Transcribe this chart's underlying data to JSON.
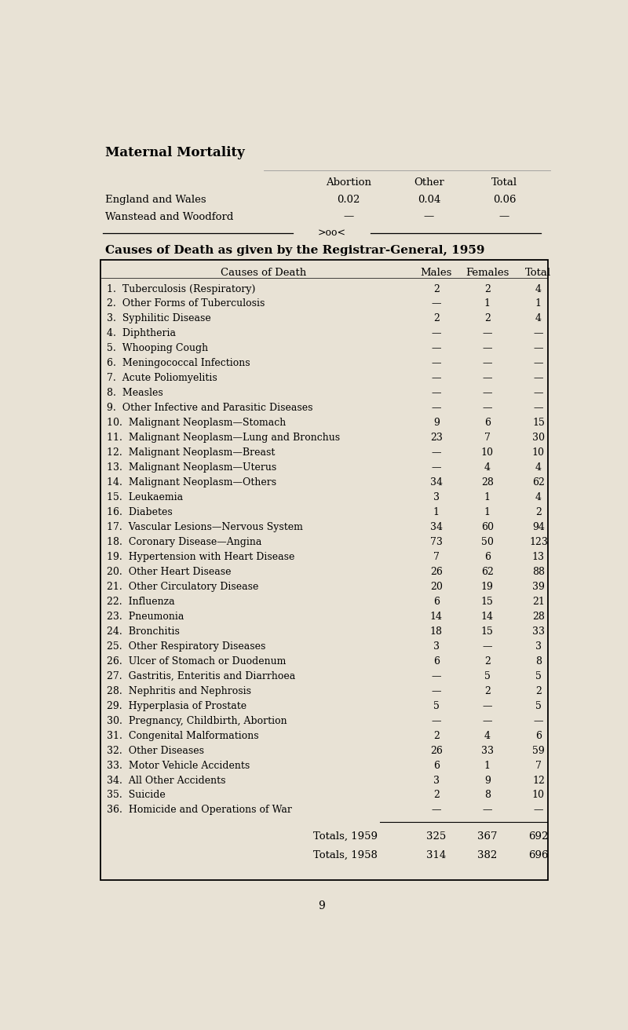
{
  "bg_color": "#e8e2d5",
  "page_number": "9",
  "maternal_title": "Maternal Mortality",
  "maternal_headers": [
    "Abortion",
    "Other",
    "Total"
  ],
  "maternal_rows": [
    [
      "England and Wales",
      "0.02",
      "0.04",
      "0.06"
    ],
    [
      "Wanstead and Woodford",
      "—",
      "—",
      "—"
    ]
  ],
  "section_title": "Causes of Death as given by the Registrar-General, 1959",
  "table_header": [
    "Causes of Death",
    "Males",
    "Females",
    "Total"
  ],
  "rows": [
    [
      "1.  Tuberculosis (Respiratory)",
      "2",
      "2",
      "4"
    ],
    [
      "2.  Other Forms of Tuberculosis",
      "—",
      "1",
      "1"
    ],
    [
      "3.  Syphilitic Disease",
      "2",
      "2",
      "4"
    ],
    [
      "4.  Diphtheria",
      "—",
      "—",
      "—"
    ],
    [
      "5.  Whooping Cough",
      "—",
      "—",
      "—"
    ],
    [
      "6.  Meningococcal Infections",
      "—",
      "—",
      "—"
    ],
    [
      "7.  Acute Poliomyelitis",
      "—",
      "—",
      "—"
    ],
    [
      "8.  Measles",
      "—",
      "—",
      "—"
    ],
    [
      "9.  Other Infective and Parasitic Diseases",
      "—",
      "—",
      "—"
    ],
    [
      "10.  Malignant Neoplasm—Stomach",
      "9",
      "6",
      "15"
    ],
    [
      "11.  Malignant Neoplasm—Lung and Bronchus",
      "23",
      "7",
      "30"
    ],
    [
      "12.  Malignant Neoplasm—Breast",
      "—",
      "10",
      "10"
    ],
    [
      "13.  Malignant Neoplasm—Uterus",
      "—",
      "4",
      "4"
    ],
    [
      "14.  Malignant Neoplasm—Others",
      "34",
      "28",
      "62"
    ],
    [
      "15.  Leukaemia",
      "3",
      "1",
      "4"
    ],
    [
      "16.  Diabetes",
      "1",
      "1",
      "2"
    ],
    [
      "17.  Vascular Lesions—Nervous System",
      "34",
      "60",
      "94"
    ],
    [
      "18.  Coronary Disease—Angina",
      "73",
      "50",
      "123"
    ],
    [
      "19.  Hypertension with Heart Disease",
      "7",
      "6",
      "13"
    ],
    [
      "20.  Other Heart Disease",
      "26",
      "62",
      "88"
    ],
    [
      "21.  Other Circulatory Disease",
      "20",
      "19",
      "39"
    ],
    [
      "22.  Influenza",
      "6",
      "15",
      "21"
    ],
    [
      "23.  Pneumonia",
      "14",
      "14",
      "28"
    ],
    [
      "24.  Bronchitis",
      "18",
      "15",
      "33"
    ],
    [
      "25.  Other Respiratory Diseases",
      "3",
      "—",
      "3"
    ],
    [
      "26.  Ulcer of Stomach or Duodenum",
      "6",
      "2",
      "8"
    ],
    [
      "27.  Gastritis, Enteritis and Diarrhoea",
      "—",
      "5",
      "5"
    ],
    [
      "28.  Nephritis and Nephrosis",
      "—",
      "2",
      "2"
    ],
    [
      "29.  Hyperplasia of Prostate",
      "5",
      "—",
      "5"
    ],
    [
      "30.  Pregnancy, Childbirth, Abortion",
      "—",
      "—",
      "—"
    ],
    [
      "31.  Congenital Malformations",
      "2",
      "4",
      "6"
    ],
    [
      "32.  Other Diseases",
      "26",
      "33",
      "59"
    ],
    [
      "33.  Motor Vehicle Accidents",
      "6",
      "1",
      "7"
    ],
    [
      "34.  All Other Accidents",
      "3",
      "9",
      "12"
    ],
    [
      "35.  Suicide",
      "2",
      "8",
      "10"
    ],
    [
      "36.  Homicide and Operations of War",
      "—",
      "—",
      "—"
    ]
  ],
  "totals_1959": [
    "Totals, 1959",
    "325",
    "367",
    "692"
  ],
  "totals_1958": [
    "Totals, 1958",
    "314",
    "382",
    "696"
  ]
}
